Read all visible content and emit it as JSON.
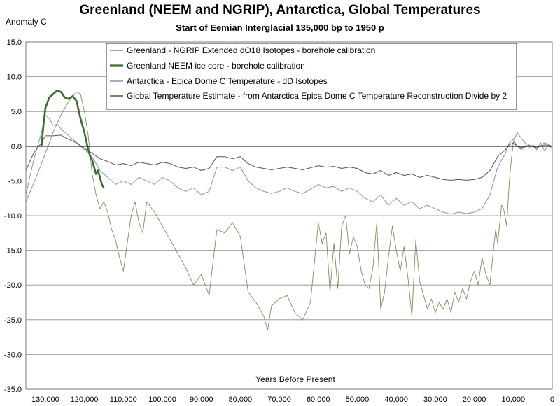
{
  "chart_data": {
    "type": "line",
    "title": "Greenland (NEEM and NGRIP), Antarctica, Global Temperatures",
    "subtitle": "Start of Eemian Interglacial 135,000  bp to 1950 p",
    "ylabel": "Anomaly C",
    "xlabel": "Years Before Present",
    "xlim": [
      135000,
      0
    ],
    "ylim": [
      -35,
      15
    ],
    "yticks": [
      "15.0",
      "10.0",
      "5.0",
      "0.0",
      "-5.0",
      "-10.0",
      "-15.0",
      "-20.0",
      "-25.0",
      "-30.0",
      "-35.0"
    ],
    "xticks": [
      "130,000",
      "120,000",
      "110,000",
      "100,000",
      "90,000",
      "80,000",
      "70,000",
      "60,000",
      "50,000",
      "40,000",
      "30,000",
      "20,000",
      "10,000",
      "0"
    ],
    "grid": "horizontal",
    "legend_position": "top",
    "series": [
      {
        "name": "Greenland - NGRIP Extended dO18 Isotopes - borehole calibration",
        "color": "#7d8f5f",
        "x": [
          135000,
          132000,
          130000,
          128000,
          126000,
          124000,
          122000,
          121000,
          120000,
          119000,
          118000,
          117000,
          116000,
          115000,
          114000,
          113000,
          112000,
          111000,
          110000,
          109000,
          108000,
          107000,
          106000,
          105000,
          104000,
          102000,
          100000,
          98000,
          96000,
          94000,
          92000,
          90000,
          88000,
          86000,
          84000,
          82000,
          80000,
          78000,
          76000,
          74000,
          73000,
          72000,
          70000,
          68000,
          66000,
          64000,
          62000,
          60000,
          59000,
          58000,
          57000,
          56000,
          55000,
          54000,
          53000,
          52000,
          51000,
          50000,
          49000,
          48000,
          47000,
          46000,
          45000,
          44000,
          43000,
          42000,
          41000,
          40000,
          39000,
          38000,
          37000,
          36000,
          35000,
          34000,
          33000,
          32000,
          31000,
          30000,
          29000,
          28000,
          27000,
          26000,
          25000,
          24000,
          23000,
          22000,
          21000,
          20000,
          19000,
          18000,
          17000,
          16000,
          15000,
          14500,
          14000,
          13000,
          12500,
          12000,
          11700,
          11000,
          10500,
          10000,
          9000,
          8000,
          7000,
          6000,
          5000,
          4000,
          3000,
          2000,
          1000,
          0
        ],
        "y": [
          -8.0,
          -4.0,
          -1.0,
          2.0,
          4.5,
          6.5,
          7.8,
          7.5,
          5.0,
          1.5,
          -4.0,
          -7.0,
          -9.0,
          -8.0,
          -9.5,
          -12.0,
          -13.5,
          -16.0,
          -18.0,
          -14.0,
          -10.0,
          -8.0,
          -11.0,
          -12.5,
          -8.0,
          -9.5,
          -11.5,
          -13.5,
          -15.5,
          -17.5,
          -20.0,
          -18.5,
          -21.5,
          -12.0,
          -12.5,
          -11.0,
          -13.0,
          -21.0,
          -22.5,
          -24.5,
          -26.5,
          -23.0,
          -22.0,
          -21.5,
          -24.0,
          -25.0,
          -22.5,
          -11.0,
          -14.0,
          -12.5,
          -21.0,
          -14.0,
          -20.5,
          -11.5,
          -10.0,
          -15.5,
          -13.0,
          -14.5,
          -18.0,
          -20.0,
          -20.5,
          -17.5,
          -11.0,
          -23.5,
          -21.0,
          -16.0,
          -11.5,
          -15.0,
          -18.0,
          -14.5,
          -19.0,
          -24.5,
          -13.5,
          -19.5,
          -21.5,
          -23.5,
          -22.0,
          -24.0,
          -22.5,
          -23.5,
          -22.0,
          -24.0,
          -21.0,
          -22.5,
          -20.5,
          -22.0,
          -19.5,
          -18.0,
          -20.0,
          -16.0,
          -18.5,
          -20.0,
          -14.5,
          -12.0,
          -14.0,
          -8.5,
          -9.0,
          -10.5,
          -11.5,
          -5.0,
          -2.0,
          0.5,
          2.0,
          1.2,
          0.5,
          -0.3,
          0.2,
          -0.5,
          0.5,
          -0.7,
          0.2,
          -0.4
        ]
      },
      {
        "name": "Greenland NEEM ice core - borehole calibration",
        "color": "#3d6a2e",
        "x": [
          131000,
          130500,
          130000,
          129000,
          128000,
          127000,
          126000,
          125000,
          124000,
          123000,
          122000,
          121000,
          120000,
          119000,
          118500,
          118000,
          117500,
          117000,
          116500,
          116000,
          115500,
          115000
        ],
        "y": [
          0.0,
          3.0,
          5.5,
          7.0,
          7.5,
          8.0,
          7.8,
          7.0,
          6.8,
          7.2,
          6.5,
          4.0,
          2.0,
          -0.5,
          -1.5,
          -2.0,
          -3.0,
          -4.0,
          -3.5,
          -4.5,
          -5.5,
          -6.0
        ]
      },
      {
        "name": "Antarctica - Epica Dome C Temperature - dD Isotopes",
        "color": "#7f97b3",
        "x": [
          135000,
          133000,
          131000,
          130000,
          129000,
          128000,
          127000,
          126000,
          125000,
          124000,
          122000,
          120000,
          118000,
          116000,
          114000,
          112000,
          110000,
          108000,
          106000,
          104000,
          102000,
          100000,
          98000,
          96000,
          94000,
          92000,
          90000,
          88000,
          86000,
          84000,
          82000,
          80000,
          78000,
          76000,
          74000,
          72000,
          70000,
          68000,
          66000,
          64000,
          62000,
          60000,
          58000,
          56000,
          54000,
          52000,
          50000,
          48000,
          46000,
          44000,
          42000,
          40000,
          38000,
          36000,
          34000,
          32000,
          30000,
          28000,
          26000,
          24000,
          22000,
          20000,
          18000,
          17000,
          16000,
          15000,
          14000,
          13000,
          12000,
          11000,
          10000,
          9000,
          8000,
          6000,
          4000,
          2000,
          0
        ],
        "y": [
          -7.0,
          -2.0,
          2.0,
          4.5,
          4.0,
          3.0,
          3.2,
          2.5,
          2.0,
          1.5,
          0.5,
          -0.5,
          -1.5,
          -3.5,
          -4.5,
          -5.5,
          -5.0,
          -5.5,
          -4.5,
          -5.0,
          -5.5,
          -4.5,
          -5.0,
          -6.0,
          -6.5,
          -6.0,
          -7.0,
          -6.5,
          -3.0,
          -3.0,
          -3.5,
          -3.0,
          -5.0,
          -6.0,
          -6.5,
          -6.8,
          -6.5,
          -6.0,
          -6.5,
          -6.8,
          -6.2,
          -5.5,
          -6.0,
          -5.8,
          -6.5,
          -6.0,
          -6.5,
          -7.5,
          -8.0,
          -7.0,
          -8.5,
          -7.5,
          -8.5,
          -8.0,
          -9.0,
          -8.5,
          -9.0,
          -9.5,
          -9.8,
          -9.5,
          -9.7,
          -9.5,
          -9.0,
          -8.0,
          -7.0,
          -5.0,
          -3.0,
          -2.0,
          -1.0,
          0.5,
          1.0,
          0.0,
          -0.5,
          0.2,
          -0.3,
          0.5,
          0.0
        ]
      },
      {
        "name": "Global Temperature Estimate - from Antarctica Epica Dome C Temperature Reconstruction Divide by 2",
        "color": "#555555",
        "x": [
          135000,
          133000,
          131000,
          130000,
          128000,
          126000,
          124000,
          122000,
          120000,
          118000,
          116000,
          114000,
          112000,
          110000,
          108000,
          106000,
          104000,
          102000,
          100000,
          98000,
          96000,
          94000,
          92000,
          90000,
          88000,
          86000,
          84000,
          82000,
          80000,
          78000,
          76000,
          74000,
          72000,
          70000,
          68000,
          66000,
          64000,
          62000,
          60000,
          58000,
          56000,
          54000,
          52000,
          50000,
          48000,
          46000,
          44000,
          42000,
          40000,
          38000,
          36000,
          34000,
          32000,
          30000,
          28000,
          26000,
          24000,
          22000,
          20000,
          18000,
          16000,
          15000,
          14000,
          13000,
          12000,
          11000,
          10000,
          9000,
          8000,
          6000,
          4000,
          2000,
          0
        ],
        "y": [
          -3.5,
          -1.0,
          0.5,
          1.5,
          1.5,
          1.6,
          1.0,
          0.5,
          -0.3,
          -1.0,
          -1.8,
          -2.2,
          -2.7,
          -2.5,
          -2.8,
          -2.3,
          -2.5,
          -2.7,
          -2.3,
          -2.5,
          -3.0,
          -3.2,
          -3.0,
          -3.5,
          -3.2,
          -1.5,
          -1.5,
          -1.8,
          -1.5,
          -2.5,
          -3.0,
          -3.2,
          -3.4,
          -3.2,
          -3.0,
          -3.2,
          -3.4,
          -3.1,
          -2.8,
          -3.0,
          -2.9,
          -3.2,
          -3.0,
          -3.2,
          -3.8,
          -4.0,
          -3.5,
          -4.2,
          -3.8,
          -4.2,
          -4.0,
          -4.5,
          -4.2,
          -4.5,
          -4.8,
          -4.9,
          -4.8,
          -4.9,
          -4.8,
          -4.5,
          -3.5,
          -2.5,
          -1.5,
          -1.0,
          -0.5,
          0.2,
          0.5,
          0.0,
          -0.2,
          0.1,
          -0.2,
          0.2,
          0.0
        ]
      }
    ]
  }
}
